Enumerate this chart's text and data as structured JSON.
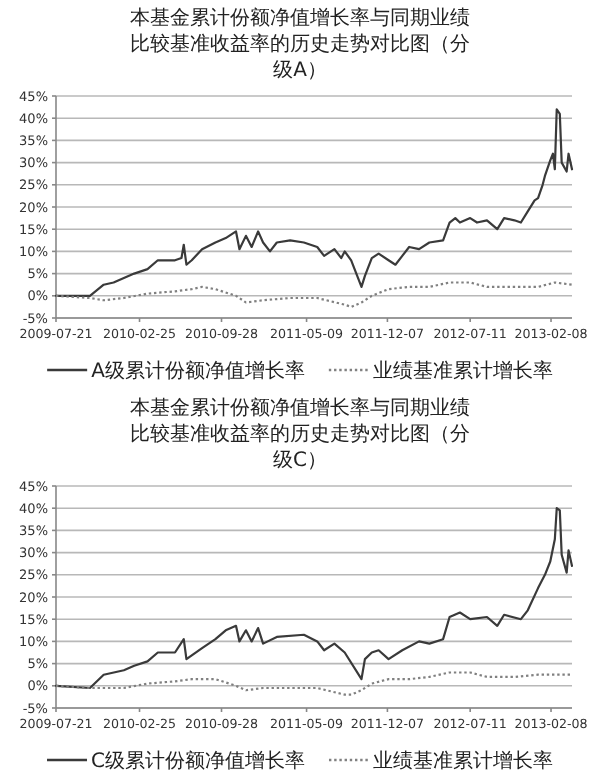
{
  "chart_data": [
    {
      "type": "line",
      "title": "本基金累计份额净值增长率与同期业绩比较基准收益率的历史走势对比图（分级A）",
      "xlim": [
        "2009-07-21",
        "2013-04-04"
      ],
      "ylim": [
        -5,
        45
      ],
      "xticks": [
        {
          "value": "2009-07-21",
          "label": "2009-07-21"
        },
        {
          "value": "2010-02-25",
          "label": "2010-02-25"
        },
        {
          "value": "2010-09-28",
          "label": "2010-09-28"
        },
        {
          "value": "2011-05-09",
          "label": "2011-05-09"
        },
        {
          "value": "2011-12-07",
          "label": "2011-12-07"
        },
        {
          "value": "2012-07-11",
          "label": "2012-07-11"
        },
        {
          "value": "2013-02-08",
          "label": "2013-02-08"
        }
      ],
      "yticks": [
        {
          "value": -5,
          "label": "-5%"
        },
        {
          "value": 0,
          "label": "0%"
        },
        {
          "value": 5,
          "label": "5%"
        },
        {
          "value": 10,
          "label": "10%"
        },
        {
          "value": 15,
          "label": "15%"
        },
        {
          "value": 20,
          "label": "20%"
        },
        {
          "value": 25,
          "label": "25%"
        },
        {
          "value": 30,
          "label": "30%"
        },
        {
          "value": 35,
          "label": "35%"
        },
        {
          "value": 40,
          "label": "40%"
        },
        {
          "value": 45,
          "label": "45%"
        }
      ],
      "grid": "y",
      "legend": "bottom",
      "series": [
        {
          "name": "A级累计份额净值增长率",
          "color": "#3a3a3a",
          "line_style": "solid",
          "x": [
            "2009-07-21",
            "2009-10-18",
            "2009-11-23",
            "2009-12-19",
            "2010-01-15",
            "2010-02-11",
            "2010-03-18",
            "2010-04-14",
            "2010-05-29",
            "2010-06-15",
            "2010-06-21",
            "2010-06-28",
            "2010-07-12",
            "2010-08-08",
            "2010-09-12",
            "2010-10-09",
            "2010-11-05",
            "2010-11-14",
            "2010-12-01",
            "2010-12-16",
            "2011-01-02",
            "2011-01-15",
            "2011-02-02",
            "2011-02-20",
            "2011-03-27",
            "2011-05-02",
            "2011-06-06",
            "2011-06-24",
            "2011-07-21",
            "2011-08-08",
            "2011-08-17",
            "2011-09-03",
            "2011-09-30",
            "2011-10-09",
            "2011-10-27",
            "2011-11-14",
            "2011-12-10",
            "2011-12-28",
            "2012-01-15",
            "2012-02-02",
            "2012-02-28",
            "2012-03-26",
            "2012-05-01",
            "2012-05-18",
            "2012-06-02",
            "2012-06-14",
            "2012-07-11",
            "2012-07-29",
            "2012-08-24",
            "2012-09-20",
            "2012-10-08",
            "2012-11-04",
            "2012-11-21",
            "2012-12-09",
            "2012-12-27",
            "2013-01-05",
            "2013-01-17",
            "2013-01-23",
            "2013-02-06",
            "2013-02-13",
            "2013-02-18",
            "2013-02-23",
            "2013-03-03",
            "2013-03-08",
            "2013-03-21",
            "2013-03-26",
            "2013-04-04"
          ],
          "values": [
            0,
            0,
            2.5,
            3,
            4,
            5,
            6,
            8,
            8,
            8.5,
            11.5,
            7,
            8,
            10.5,
            12,
            13,
            14.5,
            10.5,
            13.5,
            11,
            14.5,
            12,
            10,
            12,
            12.5,
            12,
            11,
            9,
            10.5,
            8.5,
            10,
            8,
            2,
            4.5,
            8.5,
            9.5,
            8,
            7,
            9,
            11,
            10.5,
            12,
            12.5,
            16.5,
            17.5,
            16.5,
            17.5,
            16.5,
            17,
            15,
            17.5,
            17,
            16.5,
            19,
            21.5,
            22,
            25,
            27,
            30.5,
            32,
            28.5,
            42,
            41,
            30,
            28,
            32,
            28.5
          ]
        },
        {
          "name": "业绩基准累计增长率",
          "color": "#808080",
          "line_style": "dotted",
          "x": [
            "2009-07-21",
            "2009-10-18",
            "2009-11-23",
            "2010-01-15",
            "2010-03-18",
            "2010-05-29",
            "2010-07-12",
            "2010-08-08",
            "2010-09-12",
            "2010-11-05",
            "2010-12-01",
            "2011-01-15",
            "2011-03-27",
            "2011-06-06",
            "2011-08-17",
            "2011-09-03",
            "2011-09-30",
            "2011-10-27",
            "2011-12-10",
            "2012-02-02",
            "2012-03-26",
            "2012-05-18",
            "2012-07-11",
            "2012-08-24",
            "2012-11-04",
            "2013-01-05",
            "2013-02-18",
            "2013-04-04"
          ],
          "values": [
            0,
            -0.5,
            -1,
            -0.5,
            0.5,
            1,
            1.5,
            2,
            1.5,
            0,
            -1.5,
            -1,
            -0.5,
            -0.5,
            -2,
            -2.5,
            -1.5,
            0,
            1.5,
            2,
            2,
            3,
            3,
            2,
            2,
            2,
            3,
            2.5
          ]
        }
      ]
    },
    {
      "type": "line",
      "title": "本基金累计份额净值增长率与同期业绩比较基准收益率的历史走势对比图（分级C）",
      "xlim": [
        "2009-07-21",
        "2013-04-04"
      ],
      "ylim": [
        -5,
        45
      ],
      "xticks": [
        {
          "value": "2009-07-21",
          "label": "2009-07-21"
        },
        {
          "value": "2010-02-25",
          "label": "2010-02-25"
        },
        {
          "value": "2010-09-28",
          "label": "2010-09-28"
        },
        {
          "value": "2011-05-09",
          "label": "2011-05-09"
        },
        {
          "value": "2011-12-07",
          "label": "2011-12-07"
        },
        {
          "value": "2012-07-11",
          "label": "2012-07-11"
        },
        {
          "value": "2013-02-08",
          "label": "2013-02-08"
        }
      ],
      "yticks": [
        {
          "value": -5,
          "label": "-5%"
        },
        {
          "value": 0,
          "label": "0%"
        },
        {
          "value": 5,
          "label": "5%"
        },
        {
          "value": 10,
          "label": "10%"
        },
        {
          "value": 15,
          "label": "15%"
        },
        {
          "value": 20,
          "label": "20%"
        },
        {
          "value": 25,
          "label": "25%"
        },
        {
          "value": 30,
          "label": "30%"
        },
        {
          "value": 35,
          "label": "35%"
        },
        {
          "value": 40,
          "label": "40%"
        },
        {
          "value": 45,
          "label": "45%"
        }
      ],
      "grid": "y",
      "legend": "bottom",
      "series": [
        {
          "name": "C级累计份额净值增长率",
          "color": "#3a3a3a",
          "line_style": "solid",
          "x": [
            "2009-07-21",
            "2009-10-18",
            "2009-11-23",
            "2010-01-15",
            "2010-02-11",
            "2010-03-18",
            "2010-04-14",
            "2010-05-29",
            "2010-06-21",
            "2010-06-28",
            "2010-08-08",
            "2010-09-12",
            "2010-10-09",
            "2010-11-05",
            "2010-11-14",
            "2010-12-01",
            "2010-12-16",
            "2011-01-02",
            "2011-01-15",
            "2011-02-20",
            "2011-05-02",
            "2011-06-06",
            "2011-06-24",
            "2011-07-21",
            "2011-08-17",
            "2011-09-30",
            "2011-10-09",
            "2011-10-27",
            "2011-11-14",
            "2011-12-10",
            "2012-01-15",
            "2012-02-28",
            "2012-03-26",
            "2012-05-01",
            "2012-05-18",
            "2012-06-14",
            "2012-07-11",
            "2012-08-24",
            "2012-09-20",
            "2012-10-08",
            "2012-11-21",
            "2012-12-09",
            "2013-01-05",
            "2013-01-23",
            "2013-02-06",
            "2013-02-18",
            "2013-02-23",
            "2013-03-03",
            "2013-03-08",
            "2013-03-21",
            "2013-03-26",
            "2013-04-04"
          ],
          "values": [
            0,
            -0.5,
            2.5,
            3.5,
            4.5,
            5.5,
            7.5,
            7.5,
            10.5,
            6,
            8.5,
            10.5,
            12.5,
            13.5,
            10,
            12.5,
            10,
            13,
            9.5,
            11,
            11.5,
            10,
            8,
            9.5,
            7.5,
            1.5,
            6,
            7.5,
            8,
            6,
            8,
            10,
            9.5,
            10.5,
            15.5,
            16.5,
            15,
            15.5,
            13.5,
            16,
            15,
            17,
            22,
            25,
            28,
            33,
            40,
            39.5,
            29.5,
            25.5,
            30.5,
            27
          ]
        },
        {
          "name": "业绩基准累计增长率",
          "color": "#808080",
          "line_style": "dotted",
          "x": [
            "2009-07-21",
            "2009-10-18",
            "2009-11-23",
            "2010-01-15",
            "2010-03-18",
            "2010-05-29",
            "2010-07-12",
            "2010-08-08",
            "2010-09-12",
            "2010-11-05",
            "2010-12-01",
            "2011-01-15",
            "2011-03-27",
            "2011-06-06",
            "2011-08-17",
            "2011-09-03",
            "2011-09-30",
            "2011-10-27",
            "2011-12-10",
            "2012-02-02",
            "2012-03-26",
            "2012-05-18",
            "2012-07-11",
            "2012-08-24",
            "2012-11-04",
            "2013-01-05",
            "2013-02-18",
            "2013-04-04"
          ],
          "values": [
            0,
            -0.5,
            -0.5,
            -0.5,
            0.5,
            1,
            1.5,
            1.5,
            1.5,
            0,
            -1,
            -0.5,
            -0.5,
            -0.5,
            -2,
            -2,
            -1,
            0.5,
            1.5,
            1.5,
            2,
            3,
            3,
            2,
            2,
            2.5,
            2.5,
            2.5
          ]
        }
      ]
    }
  ]
}
